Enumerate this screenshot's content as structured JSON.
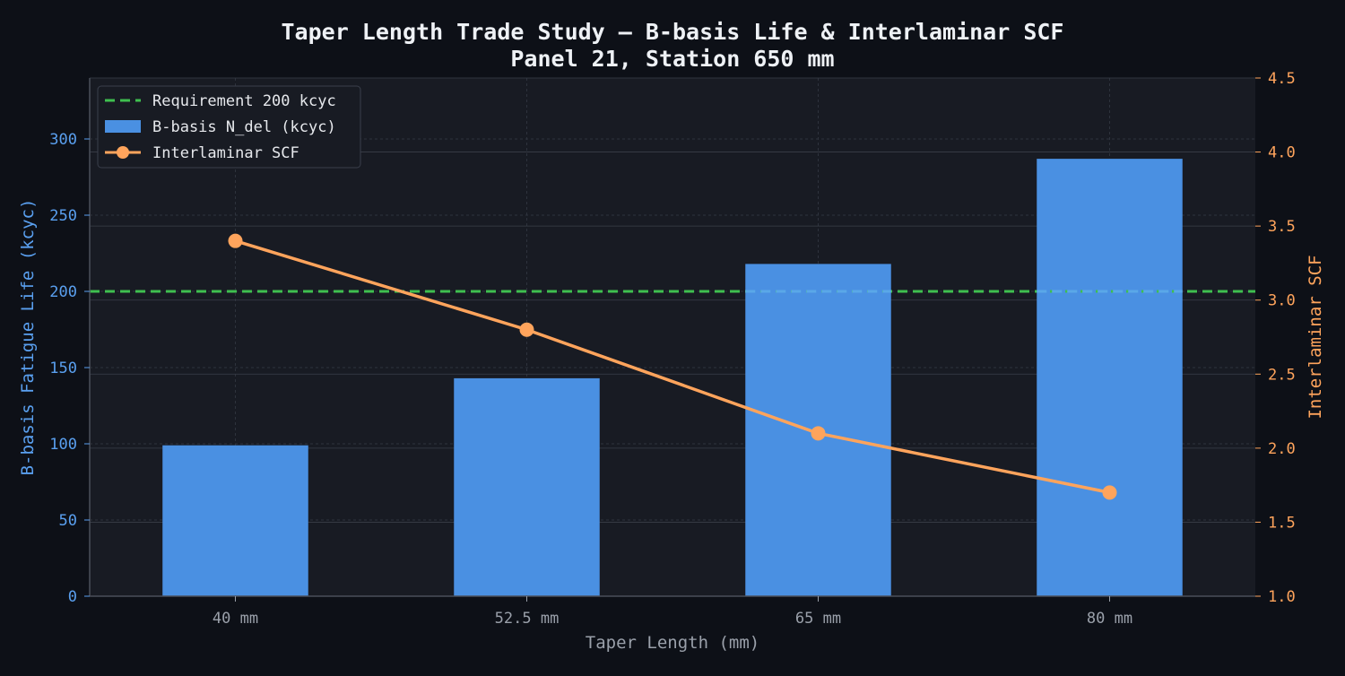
{
  "chart_data": {
    "type": "bar",
    "title": "Taper Length Trade Study — B-basis Life & Interlaminar SCF",
    "subtitle": "Panel 21, Station 650 mm",
    "xlabel": "Taper Length (mm)",
    "ylabel": "B-basis Fatigue Life (kcyc)",
    "y2label": "Interlaminar SCF",
    "categories": [
      "40 mm",
      "52.5 mm",
      "65 mm",
      "80 mm"
    ],
    "ylim": [
      0,
      340
    ],
    "y2lim": [
      1.0,
      4.5
    ],
    "yticks": [
      "0",
      "50",
      "100",
      "150",
      "200",
      "250",
      "300"
    ],
    "y2ticks": [
      "1.0",
      "1.5",
      "2.0",
      "2.5",
      "3.0",
      "3.5",
      "4.0",
      "4.5"
    ],
    "grid": true,
    "legend_position": "top-left",
    "series": [
      {
        "name": "B-basis N_del (kcyc)",
        "type": "bar",
        "axis": "left",
        "color": "#4a90e2",
        "values": [
          99,
          143,
          218,
          287
        ]
      },
      {
        "name": "Interlaminar SCF",
        "type": "line",
        "axis": "right",
        "color": "#ffa45c",
        "values": [
          3.4,
          2.8,
          2.1,
          1.7
        ]
      }
    ],
    "reference_line": {
      "name": "Requirement 200 kcyc",
      "value": 200,
      "axis": "left",
      "color": "#3fbf4f"
    },
    "colors": {
      "background": "#0d1017",
      "plot_background": "#181b23",
      "left_axis": "#5aa0f0",
      "right_axis": "#ffa45c",
      "x_axis_text": "#9aa0aa"
    }
  }
}
